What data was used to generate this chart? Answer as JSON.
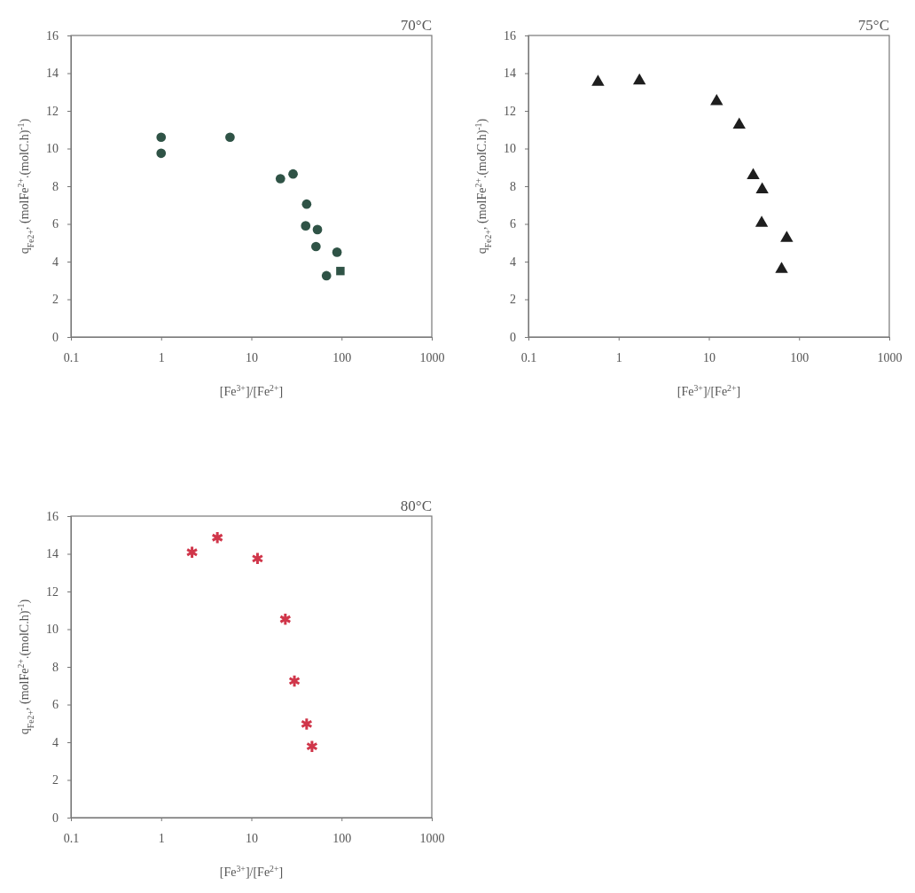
{
  "chart_data": [
    {
      "type": "scatter",
      "title": "70°C",
      "xlabel": "[Fe$^{3+}$]/[Fe$^{2+}$]",
      "ylabel": "q$_{Fe2+}$, (molFe$^{2+}$.(molC.h)$^{-1}$)",
      "log": "x",
      "xlim": [
        0.1,
        1000
      ],
      "xticks": [
        0.1,
        1,
        10,
        100,
        1000
      ],
      "ylim": [
        0,
        16
      ],
      "yticks": [
        0,
        2,
        4,
        6,
        8,
        10,
        12,
        14,
        16
      ],
      "series": [
        {
          "color": "#2f5346",
          "marker": "circle",
          "x": [
            1.0,
            1.0,
            5.8,
            21,
            29,
            41,
            40,
            54,
            52,
            89,
            68
          ],
          "values": [
            10.6,
            9.75,
            10.6,
            8.4,
            8.65,
            7.05,
            5.9,
            5.7,
            4.8,
            4.5,
            3.25
          ]
        },
        {
          "color": "#2f5346",
          "marker": "square",
          "x": [
            97
          ],
          "values": [
            3.5
          ]
        }
      ]
    },
    {
      "type": "scatter",
      "title": "75°C",
      "xlabel": "[Fe$^{3+}$]/[Fe$^{2+}$]",
      "ylabel": "q$_{Fe2+}$, (molFe$^{2+}$.(molC.h)$^{-1}$)",
      "log": "x",
      "xlim": [
        0.1,
        1000
      ],
      "xticks": [
        0.1,
        1,
        10,
        100,
        1000
      ],
      "ylim": [
        0,
        16
      ],
      "yticks": [
        0,
        2,
        4,
        6,
        8,
        10,
        12,
        14,
        16
      ],
      "series": [
        {
          "color": "#1e1e1e",
          "marker": "triangle",
          "x": [
            0.59,
            1.7,
            12.2,
            21.7,
            31,
            39,
            38.5,
            73,
            64
          ],
          "values": [
            13.53,
            13.6,
            12.5,
            11.26,
            8.57,
            7.82,
            6.04,
            5.24,
            3.6
          ]
        }
      ]
    },
    {
      "type": "scatter",
      "title": "80°C",
      "xlabel": "[Fe$^{3+}$]/[Fe$^{2+}$]",
      "ylabel": "q$_{Fe2+}$, (molFe$^{2+}$.(molC.h)$^{-1}$)",
      "log": "x",
      "xlim": [
        0.1,
        1000
      ],
      "xticks": [
        0.1,
        1,
        10,
        100,
        1000
      ],
      "ylim": [
        0,
        16
      ],
      "yticks": [
        0,
        2,
        4,
        6,
        8,
        10,
        12,
        14,
        16
      ],
      "series": [
        {
          "color": "#d0364a",
          "marker": "cross",
          "x": [
            2.2,
            4.2,
            11.7,
            23.8,
            30,
            41,
            47
          ],
          "values": [
            14.08,
            14.86,
            13.75,
            10.53,
            7.25,
            4.97,
            3.78
          ]
        }
      ]
    }
  ]
}
